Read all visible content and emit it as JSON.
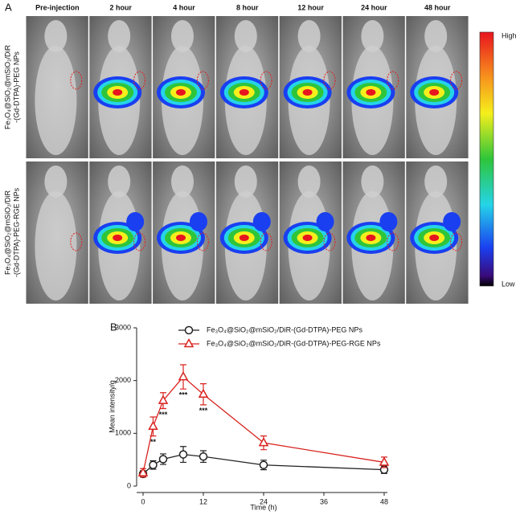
{
  "panel_a": {
    "label": "A",
    "columns": [
      "Pre-injection",
      "2 hour",
      "4 hour",
      "8 hour",
      "12 hour",
      "24 hour",
      "48 hour"
    ],
    "rows": [
      [
        "Fe₃O₄@SiO₂@mSiO₂/DiR",
        "-(Gd-DTPA)-PEG NPs"
      ],
      [
        "Fe₃O₄@SiO₂@mSiO₂/DiR",
        "-(Gd-DTPA)-PEG-RGE NPs"
      ]
    ],
    "scale_high": "High",
    "scale_low": "Low"
  },
  "chart_data": {
    "type": "line",
    "panel_label": "B",
    "x_label": "Time (h)",
    "y_label": "Mean intensity/g",
    "x": [
      0,
      2,
      4,
      8,
      12,
      24,
      48
    ],
    "series": [
      {
        "name": "Fe₃O₄@SiO₂@mSiO₂/DiR-(Gd-DTPA)-PEG NPs",
        "color": "#222222",
        "marker": "circle",
        "values": [
          230,
          400,
          510,
          600,
          560,
          400,
          310
        ],
        "errors": [
          60,
          80,
          100,
          150,
          110,
          90,
          70
        ]
      },
      {
        "name": "Fe₃O₄@SiO₂@mSiO₂/DiR-(Gd-DTPA)-PEG-RGE NPs",
        "color": "#d8231f",
        "marker": "triangle",
        "values": [
          250,
          1130,
          1620,
          2070,
          1740,
          820,
          450
        ],
        "errors": [
          80,
          180,
          150,
          230,
          200,
          130,
          100
        ]
      }
    ],
    "annotations": [
      {
        "text": "**",
        "x": 2
      },
      {
        "text": "***",
        "x": 4
      },
      {
        "text": "***",
        "x": 8
      },
      {
        "text": "***",
        "x": 12
      }
    ],
    "xlim": [
      0,
      48
    ],
    "xticks": [
      0,
      12,
      24,
      36,
      48
    ],
    "ylim": [
      0,
      3000
    ],
    "yticks": [
      0,
      1000,
      2000,
      3000
    ]
  }
}
